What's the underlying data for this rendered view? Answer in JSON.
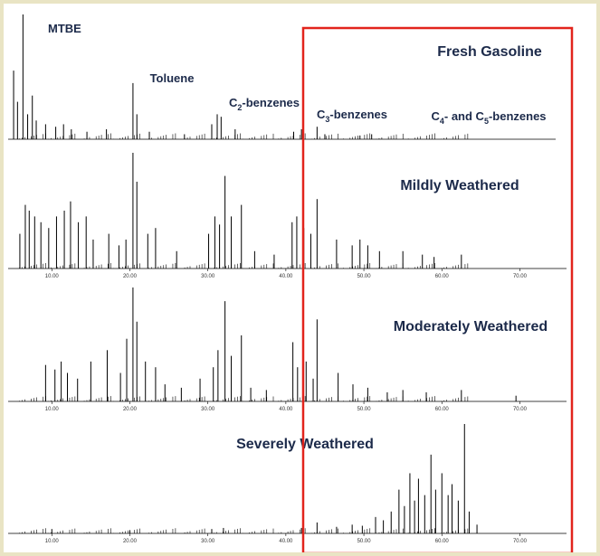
{
  "colors": {
    "trace": "#000000",
    "highlight_box": "#e2241c",
    "label_text": "#1c2a4a",
    "frame": "#e9e4c4"
  },
  "chart_data": [
    {
      "type": "line",
      "title": "Fresh Gasoline",
      "xlabel": "",
      "ylabel": "",
      "xlim": [
        5,
        71
      ],
      "x_tick_labels": [],
      "grid": false,
      "annotations": [
        {
          "text": "MTBE",
          "x": 6.3
        },
        {
          "text": "Toluene",
          "x": 20.4
        },
        {
          "text": "C",
          "sub": "2",
          "tail": "-benzenes",
          "x": 31.5
        },
        {
          "text": "C",
          "sub": "3",
          "tail": "-benzenes",
          "x": 42
        },
        {
          "text": "C",
          "sub": "4",
          "tail": "- and C",
          "sub2": "5",
          "tail2": "-benzenes",
          "x": 56
        }
      ],
      "peaks": [
        {
          "x": 6.3,
          "y": 1.0
        },
        {
          "x": 5.1,
          "y": 0.55
        },
        {
          "x": 5.6,
          "y": 0.3
        },
        {
          "x": 6.9,
          "y": 0.2
        },
        {
          "x": 7.5,
          "y": 0.35
        },
        {
          "x": 8.0,
          "y": 0.15
        },
        {
          "x": 9.2,
          "y": 0.12
        },
        {
          "x": 10.5,
          "y": 0.1
        },
        {
          "x": 11.5,
          "y": 0.12
        },
        {
          "x": 12.5,
          "y": 0.08
        },
        {
          "x": 14.5,
          "y": 0.06
        },
        {
          "x": 17.0,
          "y": 0.08
        },
        {
          "x": 20.4,
          "y": 0.45
        },
        {
          "x": 20.9,
          "y": 0.2
        },
        {
          "x": 22.5,
          "y": 0.06
        },
        {
          "x": 27.0,
          "y": 0.04
        },
        {
          "x": 30.5,
          "y": 0.12
        },
        {
          "x": 31.2,
          "y": 0.2
        },
        {
          "x": 31.7,
          "y": 0.18
        },
        {
          "x": 33.5,
          "y": 0.08
        },
        {
          "x": 41.0,
          "y": 0.06
        },
        {
          "x": 42.0,
          "y": 0.08
        },
        {
          "x": 44.0,
          "y": 0.1
        },
        {
          "x": 45.0,
          "y": 0.04
        },
        {
          "x": 49.5,
          "y": 0.03
        },
        {
          "x": 51.0,
          "y": 0.04
        }
      ]
    },
    {
      "type": "line",
      "title": "Mildly Weathered",
      "xlabel": "",
      "ylabel": "",
      "xlim": [
        5,
        71
      ],
      "x_tick_labels": [
        "10.00",
        "20.00",
        "30.00",
        "40.00",
        "50.00",
        "60.00",
        "70.00"
      ],
      "x_ticks": [
        10,
        20,
        30,
        40,
        50,
        60,
        70
      ],
      "grid": false,
      "peaks": [
        {
          "x": 5.9,
          "y": 0.3
        },
        {
          "x": 6.6,
          "y": 0.55
        },
        {
          "x": 7.1,
          "y": 0.5
        },
        {
          "x": 7.8,
          "y": 0.45
        },
        {
          "x": 8.6,
          "y": 0.4
        },
        {
          "x": 9.6,
          "y": 0.35
        },
        {
          "x": 10.6,
          "y": 0.45
        },
        {
          "x": 11.6,
          "y": 0.5
        },
        {
          "x": 12.4,
          "y": 0.58
        },
        {
          "x": 13.4,
          "y": 0.4
        },
        {
          "x": 14.4,
          "y": 0.45
        },
        {
          "x": 15.3,
          "y": 0.25
        },
        {
          "x": 17.3,
          "y": 0.3
        },
        {
          "x": 18.6,
          "y": 0.2
        },
        {
          "x": 19.5,
          "y": 0.25
        },
        {
          "x": 20.4,
          "y": 1.0
        },
        {
          "x": 20.9,
          "y": 0.75
        },
        {
          "x": 22.3,
          "y": 0.3
        },
        {
          "x": 23.3,
          "y": 0.35
        },
        {
          "x": 26.0,
          "y": 0.15
        },
        {
          "x": 30.1,
          "y": 0.3
        },
        {
          "x": 30.9,
          "y": 0.45
        },
        {
          "x": 31.5,
          "y": 0.38
        },
        {
          "x": 32.2,
          "y": 0.8
        },
        {
          "x": 33.0,
          "y": 0.45
        },
        {
          "x": 34.3,
          "y": 0.55
        },
        {
          "x": 36.0,
          "y": 0.15
        },
        {
          "x": 38.5,
          "y": 0.12
        },
        {
          "x": 40.8,
          "y": 0.4
        },
        {
          "x": 41.4,
          "y": 0.45
        },
        {
          "x": 42.3,
          "y": 0.35
        },
        {
          "x": 43.2,
          "y": 0.3
        },
        {
          "x": 44.0,
          "y": 0.6
        },
        {
          "x": 46.5,
          "y": 0.25
        },
        {
          "x": 48.5,
          "y": 0.2
        },
        {
          "x": 49.5,
          "y": 0.25
        },
        {
          "x": 50.5,
          "y": 0.2
        },
        {
          "x": 52.0,
          "y": 0.15
        },
        {
          "x": 55.0,
          "y": 0.15
        },
        {
          "x": 57.5,
          "y": 0.12
        },
        {
          "x": 59.0,
          "y": 0.1
        },
        {
          "x": 62.5,
          "y": 0.12
        }
      ]
    },
    {
      "type": "line",
      "title": "Moderately Weathered",
      "xlabel": "",
      "ylabel": "",
      "xlim": [
        5,
        71
      ],
      "x_tick_labels": [
        "10.00",
        "20.00",
        "30.00",
        "40.00",
        "50.00",
        "60.00",
        "70.00"
      ],
      "x_ticks": [
        10,
        20,
        30,
        40,
        50,
        60,
        70
      ],
      "grid": false,
      "peaks": [
        {
          "x": 9.2,
          "y": 0.32
        },
        {
          "x": 10.4,
          "y": 0.28
        },
        {
          "x": 11.2,
          "y": 0.35
        },
        {
          "x": 12.0,
          "y": 0.25
        },
        {
          "x": 13.3,
          "y": 0.2
        },
        {
          "x": 15.0,
          "y": 0.35
        },
        {
          "x": 17.1,
          "y": 0.45
        },
        {
          "x": 18.8,
          "y": 0.25
        },
        {
          "x": 19.6,
          "y": 0.55
        },
        {
          "x": 20.4,
          "y": 1.0
        },
        {
          "x": 20.9,
          "y": 0.7
        },
        {
          "x": 22.0,
          "y": 0.35
        },
        {
          "x": 23.3,
          "y": 0.3
        },
        {
          "x": 24.5,
          "y": 0.15
        },
        {
          "x": 26.6,
          "y": 0.12
        },
        {
          "x": 29.0,
          "y": 0.2
        },
        {
          "x": 30.7,
          "y": 0.3
        },
        {
          "x": 31.3,
          "y": 0.45
        },
        {
          "x": 32.2,
          "y": 0.88
        },
        {
          "x": 33.0,
          "y": 0.4
        },
        {
          "x": 34.3,
          "y": 0.58
        },
        {
          "x": 35.5,
          "y": 0.12
        },
        {
          "x": 37.5,
          "y": 0.1
        },
        {
          "x": 40.9,
          "y": 0.52
        },
        {
          "x": 41.5,
          "y": 0.3
        },
        {
          "x": 42.6,
          "y": 0.35
        },
        {
          "x": 43.5,
          "y": 0.2
        },
        {
          "x": 44.0,
          "y": 0.72
        },
        {
          "x": 46.7,
          "y": 0.25
        },
        {
          "x": 48.6,
          "y": 0.15
        },
        {
          "x": 50.5,
          "y": 0.12
        },
        {
          "x": 53.0,
          "y": 0.08
        },
        {
          "x": 55.0,
          "y": 0.1
        },
        {
          "x": 58.0,
          "y": 0.08
        },
        {
          "x": 62.5,
          "y": 0.1
        },
        {
          "x": 69.5,
          "y": 0.05
        }
      ]
    },
    {
      "type": "line",
      "title": "Severely Weathered",
      "xlabel": "",
      "ylabel": "",
      "xlim": [
        5,
        71
      ],
      "x_tick_labels": [
        "10.00",
        "20.00",
        "30.00",
        "40.00",
        "50.00",
        "60.00",
        "70.00"
      ],
      "x_ticks": [
        10,
        20,
        30,
        40,
        50,
        60,
        70
      ],
      "grid": false,
      "peaks": [
        {
          "x": 10.0,
          "y": 0.04
        },
        {
          "x": 20.0,
          "y": 0.03
        },
        {
          "x": 30.5,
          "y": 0.04
        },
        {
          "x": 32.0,
          "y": 0.05
        },
        {
          "x": 42.0,
          "y": 0.05
        },
        {
          "x": 44.0,
          "y": 0.1
        },
        {
          "x": 46.5,
          "y": 0.06
        },
        {
          "x": 48.5,
          "y": 0.08
        },
        {
          "x": 49.8,
          "y": 0.07
        },
        {
          "x": 51.5,
          "y": 0.15
        },
        {
          "x": 52.5,
          "y": 0.12
        },
        {
          "x": 53.5,
          "y": 0.2
        },
        {
          "x": 54.5,
          "y": 0.4
        },
        {
          "x": 55.2,
          "y": 0.25
        },
        {
          "x": 55.9,
          "y": 0.55
        },
        {
          "x": 56.5,
          "y": 0.3
        },
        {
          "x": 57.0,
          "y": 0.5
        },
        {
          "x": 57.8,
          "y": 0.35
        },
        {
          "x": 58.6,
          "y": 0.72
        },
        {
          "x": 59.2,
          "y": 0.4
        },
        {
          "x": 60.0,
          "y": 0.55
        },
        {
          "x": 60.8,
          "y": 0.35
        },
        {
          "x": 61.3,
          "y": 0.45
        },
        {
          "x": 62.1,
          "y": 0.3
        },
        {
          "x": 62.9,
          "y": 1.0
        },
        {
          "x": 63.5,
          "y": 0.2
        },
        {
          "x": 64.5,
          "y": 0.08
        }
      ]
    }
  ]
}
